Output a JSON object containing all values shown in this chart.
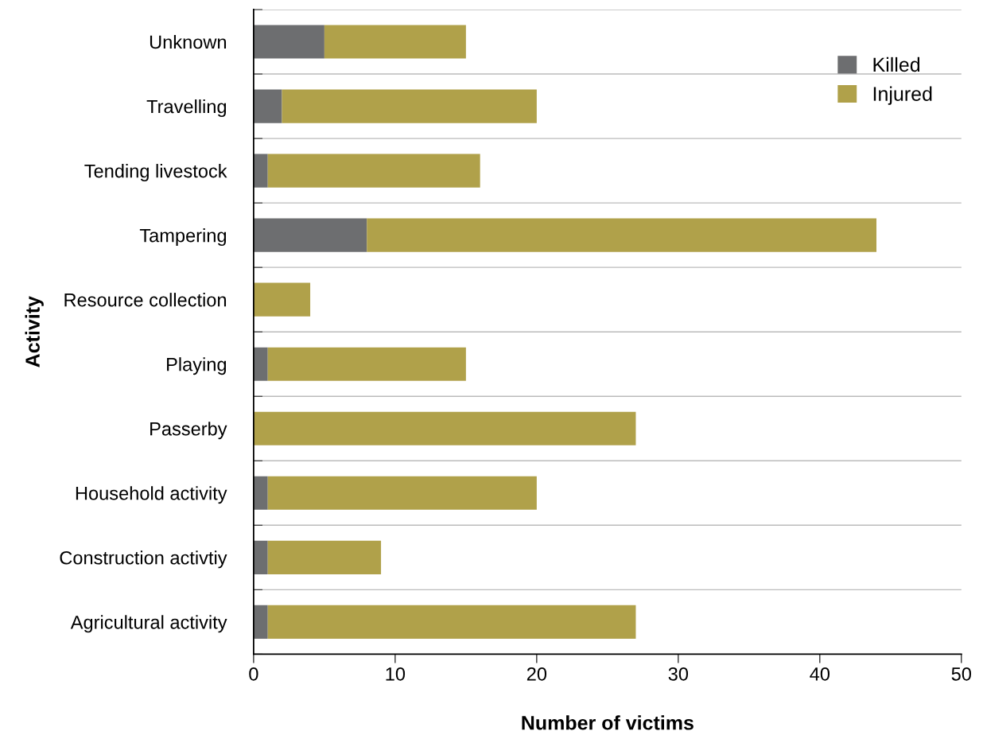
{
  "chart_data": {
    "type": "bar",
    "orientation": "horizontal",
    "stacked": true,
    "xlabel": "Number of victims",
    "ylabel": "Activity",
    "categories": [
      "Unknown",
      "Travelling",
      "Tending livestock",
      "Tampering",
      "Resource collection",
      "Playing",
      "Passerby",
      "Household activity",
      "Construction activtiy",
      "Agricultural activity"
    ],
    "series": [
      {
        "name": "Killed",
        "color": "#6d6e70",
        "values": [
          5,
          2,
          1,
          8,
          0,
          1,
          0,
          1,
          1,
          1
        ]
      },
      {
        "name": "Injured",
        "color": "#b0a14a",
        "values": [
          10,
          18,
          15,
          36,
          4,
          14,
          27,
          19,
          8,
          26
        ]
      }
    ],
    "xlim": [
      0,
      50
    ],
    "xticks": [
      0,
      10,
      20,
      30,
      40,
      50
    ],
    "grid": "y",
    "legend": "top right"
  }
}
